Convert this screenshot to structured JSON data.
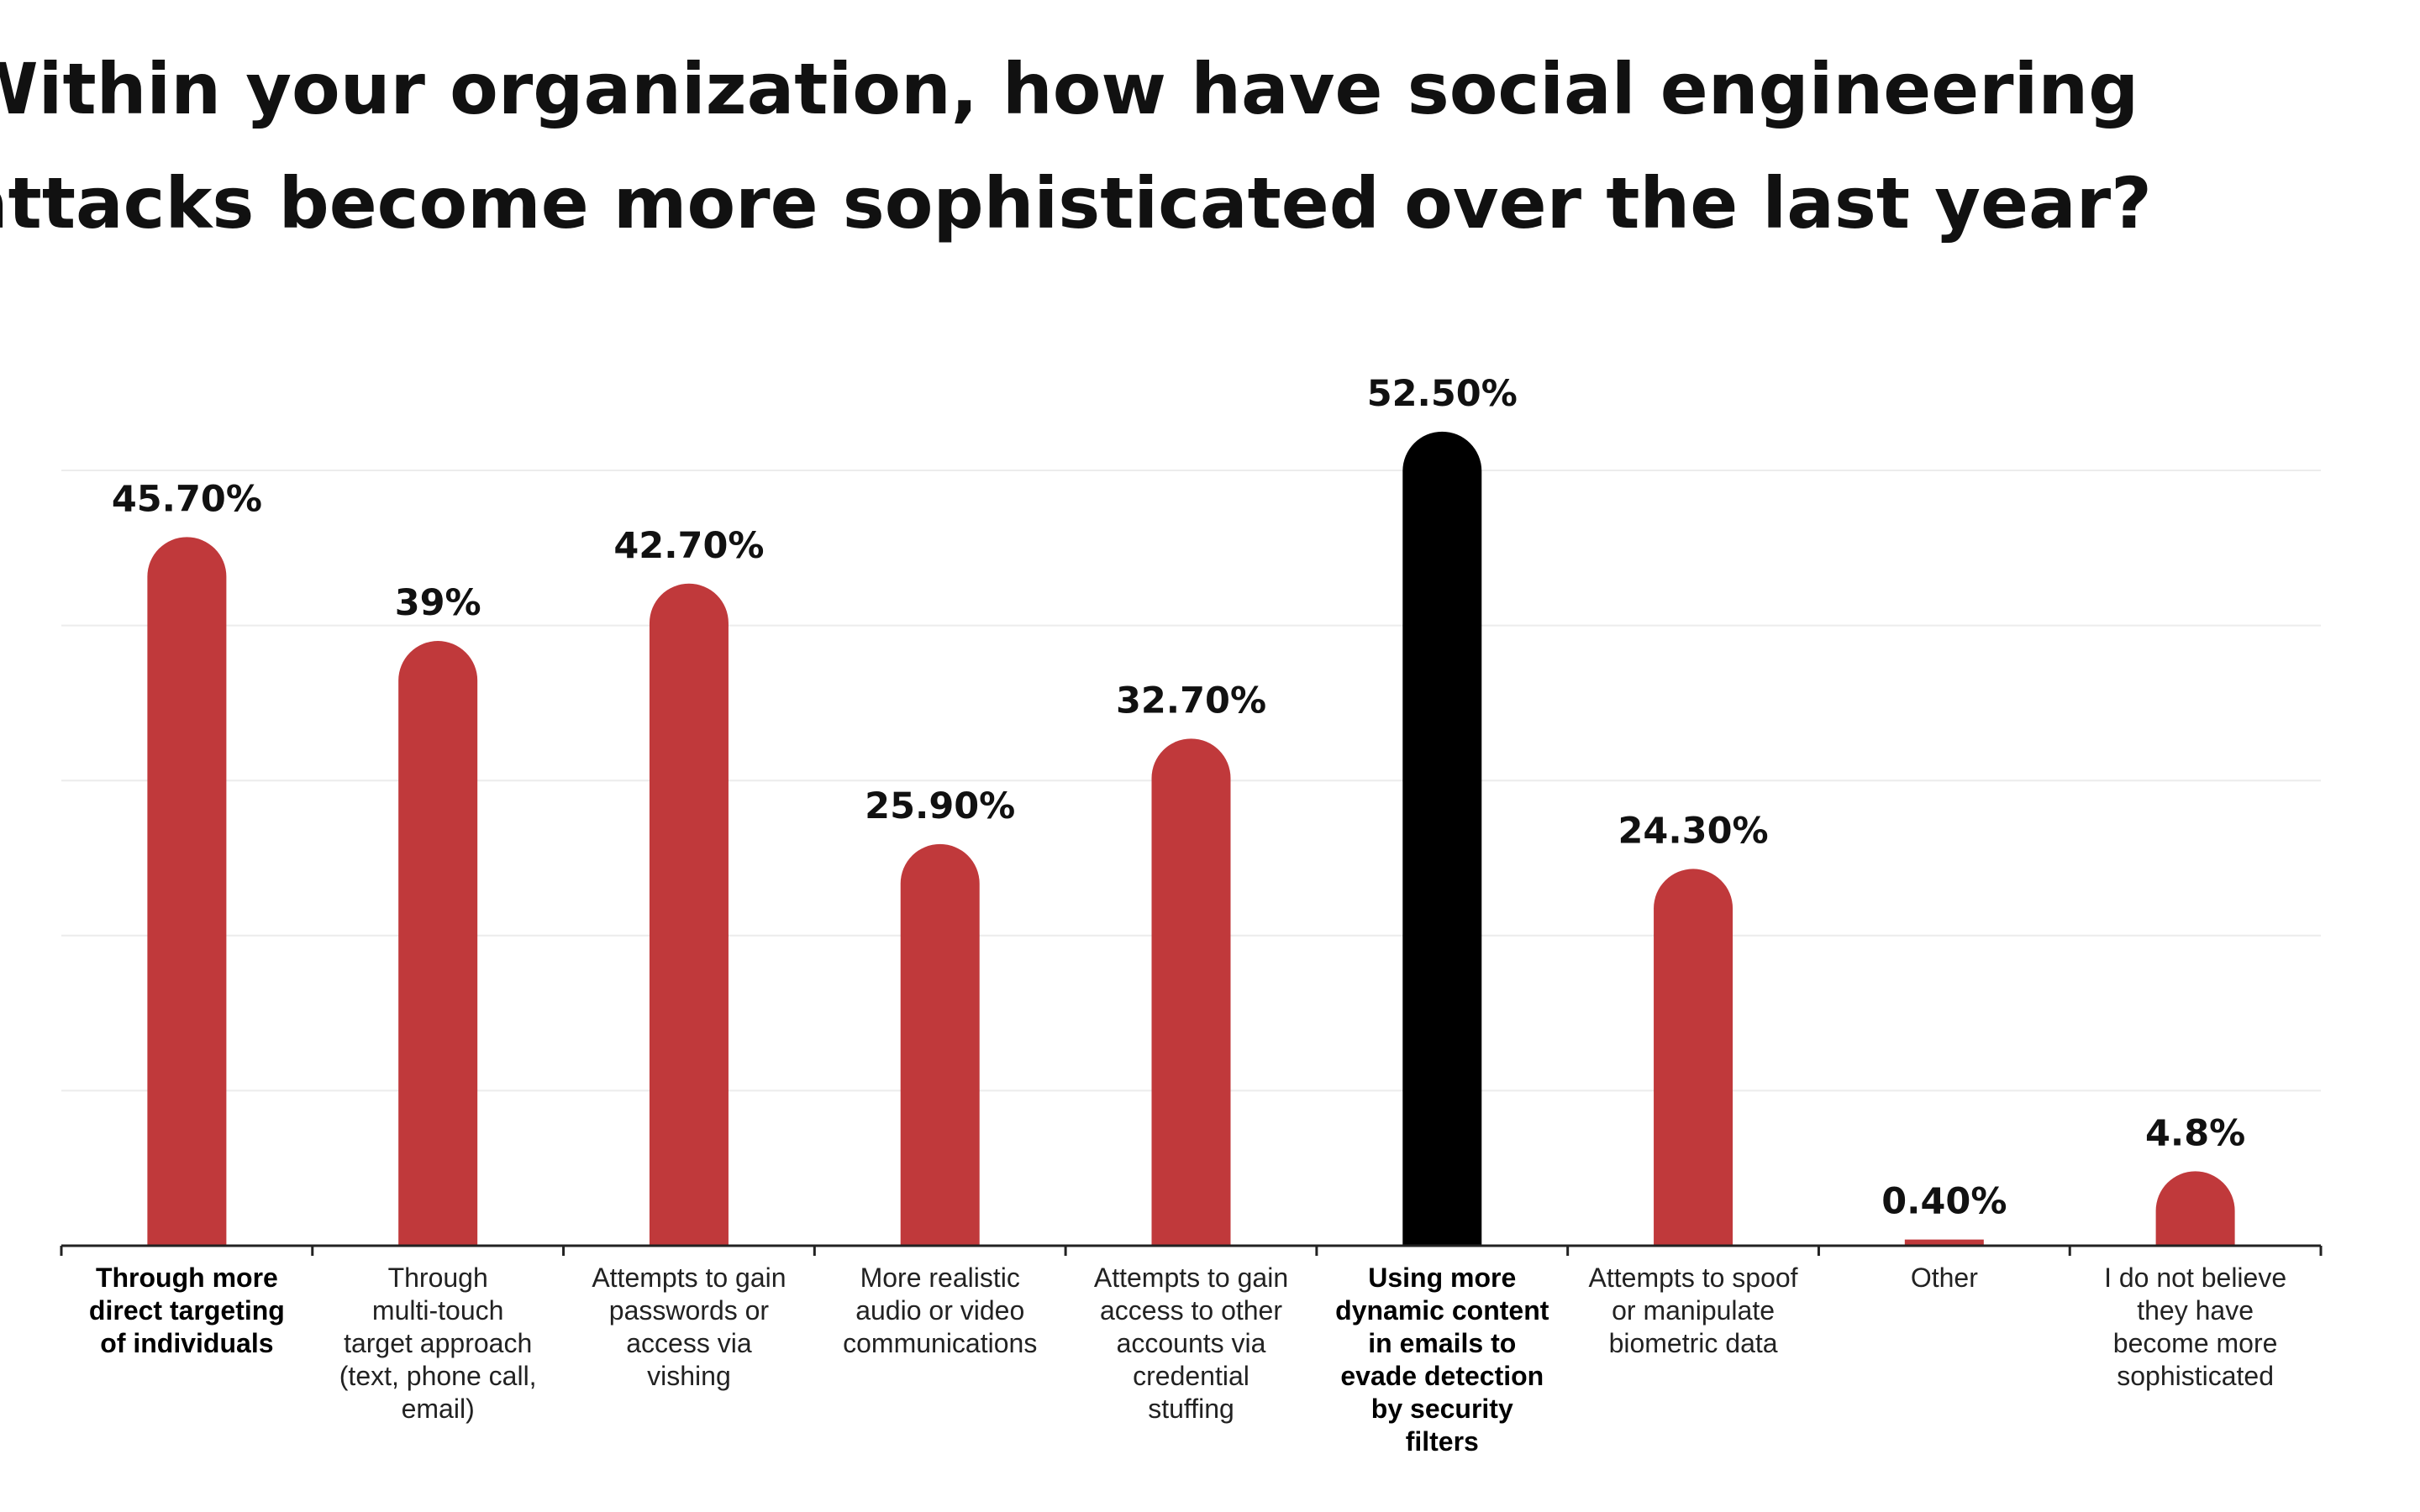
{
  "chart_data": {
    "type": "bar",
    "title": "Within your organization, how have social engineering attacks become more sophisticated over the last year?",
    "categories": [
      "Through more direct targeting of individuals",
      "Through multi-touch target approach (text, phone call, email)",
      "Attempts to gain passwords or access via vishing",
      "More realistic audio or video communications",
      "Attempts to gain access to other accounts via credential stuffing",
      "Using more dynamic content in emails to evade detection by security filters",
      "Attempts to spoof or manipulate biometric data",
      "Other",
      "I do not believe they have become more sophisticated"
    ],
    "category_lines": [
      [
        "Through more",
        "direct targeting",
        "of individuals"
      ],
      [
        "Through",
        "multi-touch",
        "target approach",
        "(text, phone call,",
        "email)"
      ],
      [
        "Attempts to gain",
        "passwords or",
        "access via",
        "vishing"
      ],
      [
        "More realistic",
        "audio or video",
        "communications"
      ],
      [
        "Attempts to gain",
        "access to other",
        "accounts via",
        "credential",
        "stuffing"
      ],
      [
        "Using more",
        "dynamic content",
        "in emails to",
        "evade detection",
        "by security",
        "filters"
      ],
      [
        "Attempts to spoof",
        "or manipulate",
        "biometric data"
      ],
      [
        "Other"
      ],
      [
        "I do not believe",
        "they have",
        "become more",
        "sophisticated"
      ]
    ],
    "values": [
      45.7,
      39,
      42.7,
      25.9,
      32.7,
      52.5,
      24.3,
      0.4,
      4.8
    ],
    "value_labels": [
      "45.70%",
      "39%",
      "42.70%",
      "25.90%",
      "32.70%",
      "52.50%",
      "24.30%",
      "0.40%",
      "4.8%"
    ],
    "bold_categories": [
      0,
      5
    ],
    "highlight_index": 5,
    "ylim": [
      0,
      50
    ],
    "grid": true,
    "colors": {
      "bar": "#c0393b",
      "highlight": "#000000",
      "grid": "#ececec",
      "axis": "#222222"
    }
  }
}
